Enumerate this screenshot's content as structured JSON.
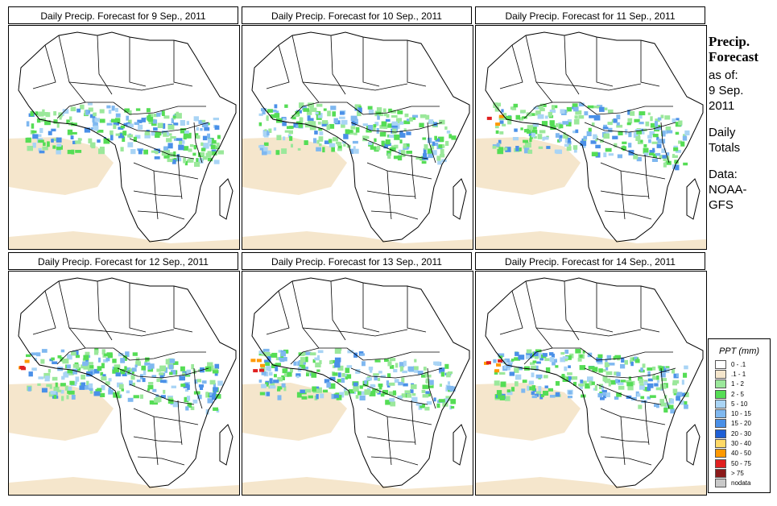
{
  "panels": [
    {
      "title": "Daily Precip. Forecast for  9 Sep., 2011"
    },
    {
      "title": "Daily Precip. Forecast for  10 Sep., 2011"
    },
    {
      "title": "Daily Precip. Forecast for  11 Sep., 2011"
    },
    {
      "title": "Daily Precip. Forecast for  12 Sep., 2011"
    },
    {
      "title": "Daily Precip. Forecast for  13 Sep., 2011"
    },
    {
      "title": "Daily Precip. Forecast for  14 Sep., 2011"
    }
  ],
  "side": {
    "line1": "Precip.",
    "line2": "Forecast",
    "asof": "as of:",
    "date1": "9 Sep.",
    "date2": "2011",
    "daily1": "Daily",
    "daily2": "Totals",
    "data1": "Data:",
    "data2": "NOAA-",
    "data3": "GFS"
  },
  "legend": {
    "title": "PPT (mm)",
    "items": [
      {
        "label": "0 - .1",
        "color": "#ffffff"
      },
      {
        "label": ".1 - 1",
        "color": "#f5e6cc"
      },
      {
        "label": "1 - 2",
        "color": "#9be89b"
      },
      {
        "label": "2 - 5",
        "color": "#55dd55"
      },
      {
        "label": "5 - 10",
        "color": "#a9d4f5"
      },
      {
        "label": "10 - 15",
        "color": "#7fb8f0"
      },
      {
        "label": "15 - 20",
        "color": "#4a90e8"
      },
      {
        "label": "20 - 30",
        "color": "#1e5fd6"
      },
      {
        "label": "30 - 40",
        "color": "#ffd966"
      },
      {
        "label": "40 - 50",
        "color": "#ff9900"
      },
      {
        "label": "50 - 75",
        "color": "#e02020"
      },
      {
        "label": "> 75",
        "color": "#8b1a1a"
      },
      {
        "label": "nodata",
        "color": "#c8c8c8"
      }
    ]
  }
}
